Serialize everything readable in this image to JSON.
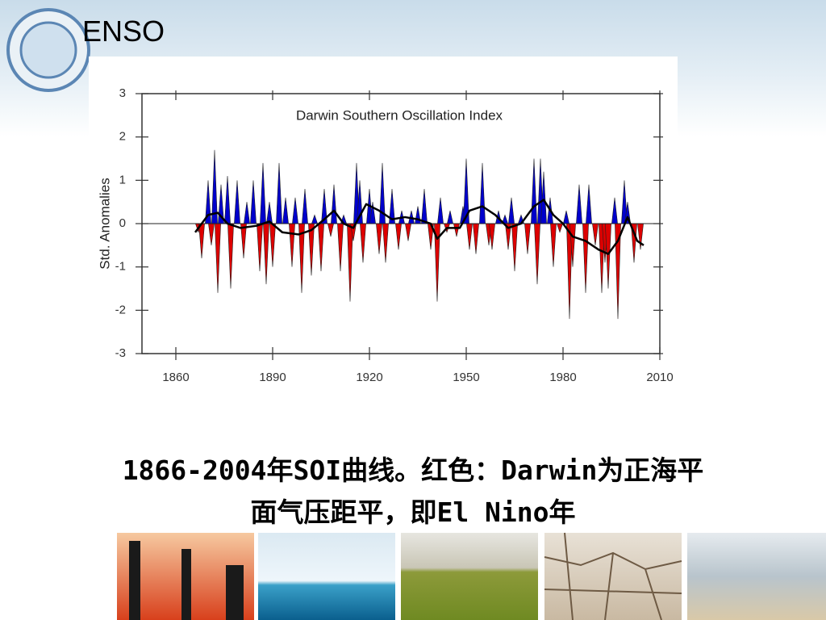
{
  "header": {
    "title": "ENSO"
  },
  "chart_data": {
    "type": "line",
    "title": "Darwin Southern Oscillation Index",
    "y_label": "Std. Anomalies",
    "xlim": [
      1849.5,
      2010
    ],
    "xticks": [
      1860,
      1890,
      1920,
      1950,
      1980,
      2010
    ],
    "ylim": [
      -3,
      3
    ],
    "yticks": [
      -3,
      -2,
      -1,
      0,
      1,
      2,
      3
    ],
    "series": [
      {
        "type": "area",
        "color": "#0000cc",
        "negative_color": "#dd0000",
        "x": [
          1867,
          1868,
          1870,
          1871,
          1872,
          1873,
          1874,
          1876,
          1877,
          1879,
          1881,
          1882,
          1884,
          1886,
          1887,
          1888,
          1889,
          1890,
          1892,
          1894,
          1896,
          1897,
          1899,
          1900,
          1902,
          1903,
          1905,
          1906,
          1908,
          1909,
          1911,
          1912,
          1914,
          1915,
          1916,
          1917,
          1918,
          1920,
          1921,
          1923,
          1924,
          1925,
          1927,
          1929,
          1930,
          1932,
          1933,
          1935,
          1937,
          1939,
          1941,
          1942,
          1944,
          1945,
          1947,
          1949,
          1950,
          1951,
          1953,
          1955,
          1957,
          1958,
          1960,
          1962,
          1963,
          1964,
          1965,
          1967,
          1969,
          1971,
          1972,
          1973,
          1974,
          1976,
          1977,
          1979,
          1981,
          1982,
          1983,
          1985,
          1987,
          1988,
          1990,
          1992,
          1993,
          1994,
          1996,
          1997,
          1999,
          2000,
          2002,
          2004
        ],
        "values": [
          -0.2,
          -0.8,
          1.0,
          -0.5,
          1.7,
          -1.6,
          0.9,
          1.1,
          -1.5,
          1.0,
          -0.8,
          0.5,
          1.0,
          -1.1,
          1.4,
          -1.4,
          0.5,
          -1.0,
          1.4,
          0.6,
          -1.0,
          0.6,
          -1.6,
          0.8,
          -1.2,
          0.2,
          -1.1,
          0.8,
          -0.3,
          0.9,
          -1.1,
          0.2,
          -1.8,
          -0.4,
          1.4,
          1.0,
          -0.9,
          0.8,
          0.5,
          -0.7,
          1.4,
          -0.9,
          0.8,
          -0.6,
          0.3,
          -0.4,
          0.3,
          0.4,
          0.8,
          -0.6,
          -1.8,
          0.6,
          -0.2,
          0.3,
          -0.3,
          0.4,
          1.5,
          -0.6,
          -0.7,
          1.4,
          -0.5,
          -0.6,
          0.3,
          0.2,
          -0.6,
          0.6,
          -1.1,
          0.2,
          -0.7,
          1.5,
          -1.4,
          1.5,
          1.2,
          0.6,
          -1.0,
          -0.2,
          0.3,
          -2.2,
          -1.0,
          0.9,
          -1.6,
          0.9,
          -0.5,
          -1.6,
          -0.9,
          -1.5,
          0.6,
          -2.2,
          1.0,
          0.5,
          -0.9,
          -0.6
        ]
      },
      {
        "type": "line",
        "color": "#000000",
        "x": [
          1866,
          1870,
          1873,
          1876,
          1880,
          1885,
          1889,
          1893,
          1898,
          1902,
          1906,
          1909,
          1912,
          1915,
          1919,
          1923,
          1927,
          1931,
          1935,
          1939,
          1941,
          1944,
          1948,
          1951,
          1955,
          1959,
          1963,
          1967,
          1971,
          1974,
          1977,
          1980,
          1983,
          1987,
          1991,
          1994,
          1997,
          2000,
          2003,
          2005
        ],
        "values": [
          -0.2,
          0.2,
          0.25,
          0.0,
          -0.1,
          -0.05,
          0.05,
          -0.2,
          -0.25,
          -0.15,
          0.1,
          0.3,
          0.0,
          -0.1,
          0.45,
          0.3,
          0.1,
          0.15,
          0.1,
          0.0,
          -0.35,
          -0.1,
          -0.1,
          0.3,
          0.4,
          0.2,
          -0.1,
          0.0,
          0.4,
          0.55,
          0.2,
          0.0,
          -0.3,
          -0.4,
          -0.6,
          -0.7,
          -0.4,
          0.15,
          -0.4,
          -0.5
        ]
      }
    ]
  },
  "caption": [
    "1866-2004年SOI曲线。红色：Darwin为正海平",
    "面气压距平，即El Nino年"
  ]
}
